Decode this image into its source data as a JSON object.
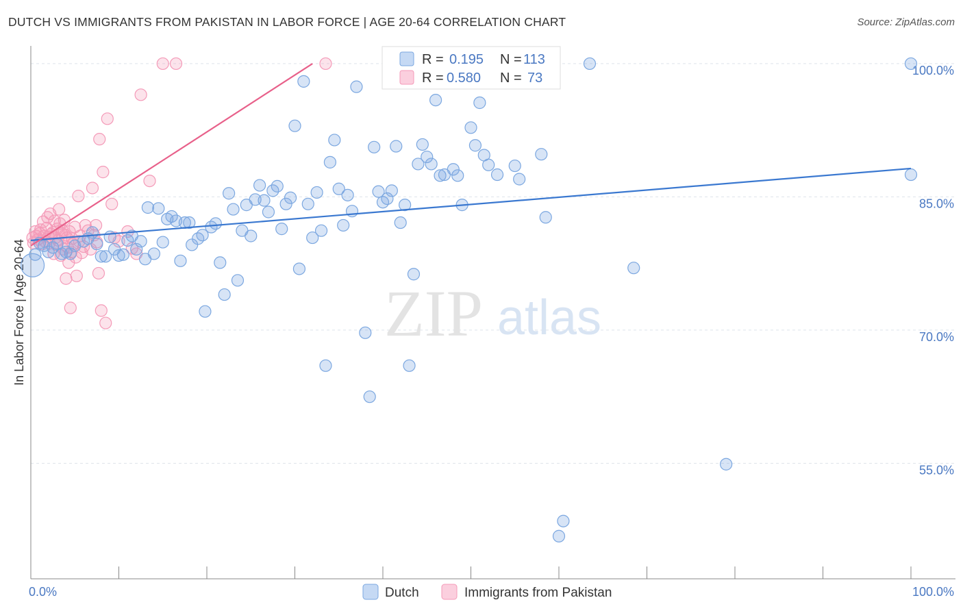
{
  "title": "DUTCH VS IMMIGRANTS FROM PAKISTAN IN LABOR FORCE | AGE 20-64 CORRELATION CHART",
  "source": "Source: ZipAtlas.com",
  "watermark": {
    "zip": "ZIP",
    "atlas": "atlas"
  },
  "colors": {
    "dutch": "#7ba7e0",
    "dutch_line": "#3a78d0",
    "pakistan": "#f49ab8",
    "pakistan_line": "#e8608a",
    "grid": "#dde3ea",
    "tick_text": "#4a78c2"
  },
  "legend": {
    "r_label": "R =",
    "n_label": "N =",
    "rows": [
      {
        "series": "Dutch",
        "r": "0.195",
        "n": "113"
      },
      {
        "series": "Immigrants from Pakistan",
        "r": "0.580",
        "n": "73"
      }
    ]
  },
  "chart_data": {
    "type": "scatter",
    "title": "DUTCH VS IMMIGRANTS FROM PAKISTAN IN LABOR FORCE | AGE 20-64 CORRELATION CHART",
    "xlabel": "",
    "ylabel": "In Labor Force | Age 20-64",
    "xlim": [
      0,
      100
    ],
    "ylim": [
      42,
      102
    ],
    "x_tick_labels": [
      "0.0%",
      "100.0%"
    ],
    "y_ticks": [
      {
        "value": 55,
        "label": "55.0%"
      },
      {
        "value": 70,
        "label": "70.0%"
      },
      {
        "value": 85,
        "label": "85.0%"
      },
      {
        "value": 100,
        "label": "100.0%"
      }
    ],
    "grid": true,
    "legend_position": "top-center",
    "series": [
      {
        "name": "Dutch",
        "trend": {
          "x": [
            0,
            100
          ],
          "y": [
            80.1,
            88.2
          ]
        },
        "points": [
          [
            0.2,
            77.3
          ],
          [
            0.5,
            78.5
          ],
          [
            1,
            79.8
          ],
          [
            1.5,
            79.5
          ],
          [
            2,
            78.8
          ],
          [
            2.5,
            79.3
          ],
          [
            3,
            79.7
          ],
          [
            3.5,
            78.6
          ],
          [
            4,
            78.8
          ],
          [
            4.5,
            78.6
          ],
          [
            5,
            79.5
          ],
          [
            6,
            80.0
          ],
          [
            6.5,
            80.3
          ],
          [
            7,
            81.0
          ],
          [
            7.5,
            79.7
          ],
          [
            8,
            78.3
          ],
          [
            8.5,
            78.3
          ],
          [
            9,
            80.5
          ],
          [
            9.5,
            79.1
          ],
          [
            10,
            78.4
          ],
          [
            10.5,
            78.5
          ],
          [
            11,
            80.1
          ],
          [
            11.5,
            80.6
          ],
          [
            12,
            79.1
          ],
          [
            12.5,
            80.0
          ],
          [
            13,
            78.0
          ],
          [
            13.3,
            83.8
          ],
          [
            14,
            78.6
          ],
          [
            14.5,
            83.7
          ],
          [
            15,
            79.9
          ],
          [
            15.5,
            82.5
          ],
          [
            16,
            82.8
          ],
          [
            16.5,
            82.3
          ],
          [
            17,
            77.8
          ],
          [
            17.5,
            82.1
          ],
          [
            18,
            82.1
          ],
          [
            18.3,
            79.6
          ],
          [
            19,
            80.3
          ],
          [
            19.5,
            80.7
          ],
          [
            19.8,
            72.1
          ],
          [
            20.5,
            81.6
          ],
          [
            21,
            82.0
          ],
          [
            21.5,
            77.6
          ],
          [
            22,
            74.0
          ],
          [
            22.5,
            85.4
          ],
          [
            23,
            83.6
          ],
          [
            23.5,
            75.6
          ],
          [
            24,
            81.2
          ],
          [
            24.5,
            84.1
          ],
          [
            25,
            80.6
          ],
          [
            25.5,
            84.7
          ],
          [
            26,
            86.3
          ],
          [
            26.5,
            84.6
          ],
          [
            27,
            83.3
          ],
          [
            27.5,
            85.7
          ],
          [
            28,
            86.2
          ],
          [
            28.5,
            81.4
          ],
          [
            29,
            84.2
          ],
          [
            29.5,
            84.9
          ],
          [
            30,
            93.0
          ],
          [
            30.5,
            76.9
          ],
          [
            31,
            98.0
          ],
          [
            31.5,
            84.2
          ],
          [
            32,
            80.4
          ],
          [
            32.5,
            85.5
          ],
          [
            33,
            81.2
          ],
          [
            33.5,
            66.0
          ],
          [
            34,
            88.9
          ],
          [
            34.5,
            91.4
          ],
          [
            35,
            85.9
          ],
          [
            35.5,
            81.8
          ],
          [
            36,
            85.2
          ],
          [
            36.5,
            83.4
          ],
          [
            37,
            97.4
          ],
          [
            38,
            69.7
          ],
          [
            38.5,
            62.5
          ],
          [
            39,
            90.6
          ],
          [
            39.5,
            85.6
          ],
          [
            40,
            84.4
          ],
          [
            40.5,
            84.8
          ],
          [
            41,
            85.7
          ],
          [
            41.5,
            90.7
          ],
          [
            42,
            82.1
          ],
          [
            42.5,
            84.1
          ],
          [
            43,
            66.0
          ],
          [
            43.5,
            76.3
          ],
          [
            44,
            88.7
          ],
          [
            44.5,
            90.9
          ],
          [
            45,
            89.5
          ],
          [
            45.5,
            88.7
          ],
          [
            46,
            95.9
          ],
          [
            46.5,
            87.4
          ],
          [
            47,
            87.5
          ],
          [
            48,
            88.1
          ],
          [
            48.5,
            87.4
          ],
          [
            49,
            84.1
          ],
          [
            50,
            92.8
          ],
          [
            50.5,
            90.8
          ],
          [
            51,
            95.6
          ],
          [
            51.5,
            89.7
          ],
          [
            52,
            88.6
          ],
          [
            53,
            87.5
          ],
          [
            55,
            88.5
          ],
          [
            55.5,
            87.0
          ],
          [
            58,
            89.8
          ],
          [
            58.5,
            82.7
          ],
          [
            60,
            46.8
          ],
          [
            60.5,
            48.5
          ],
          [
            63.5,
            100.0
          ],
          [
            68.5,
            77.0
          ],
          [
            79,
            54.9
          ],
          [
            100,
            100.0
          ],
          [
            100,
            87.5
          ]
        ]
      },
      {
        "name": "Immigrants from Pakistan",
        "trend": {
          "x": [
            0,
            32
          ],
          "y": [
            79.5,
            100.0
          ]
        },
        "points": [
          [
            0.2,
            80.4
          ],
          [
            0.3,
            79.8
          ],
          [
            0.5,
            81.1
          ],
          [
            0.6,
            80.6
          ],
          [
            0.8,
            80.2
          ],
          [
            1,
            80.9
          ],
          [
            1.1,
            81.3
          ],
          [
            1.3,
            79.7
          ],
          [
            1.4,
            82.2
          ],
          [
            1.5,
            80.6
          ],
          [
            1.6,
            80.0
          ],
          [
            1.8,
            81.5
          ],
          [
            1.9,
            82.7
          ],
          [
            2,
            80.5
          ],
          [
            2.1,
            79.8
          ],
          [
            2.2,
            83.1
          ],
          [
            2.3,
            80.8
          ],
          [
            2.5,
            81.0
          ],
          [
            2.6,
            78.6
          ],
          [
            2.7,
            82.3
          ],
          [
            2.8,
            80.4
          ],
          [
            2.9,
            79.6
          ],
          [
            3,
            81.4
          ],
          [
            3.1,
            80.1
          ],
          [
            3.2,
            83.6
          ],
          [
            3.3,
            82.0
          ],
          [
            3.4,
            78.4
          ],
          [
            3.5,
            80.9
          ],
          [
            3.6,
            81.2
          ],
          [
            3.7,
            79.1
          ],
          [
            3.8,
            82.4
          ],
          [
            3.9,
            80.7
          ],
          [
            4,
            75.8
          ],
          [
            4.1,
            80.4
          ],
          [
            4.2,
            79.3
          ],
          [
            4.3,
            77.6
          ],
          [
            4.4,
            81.1
          ],
          [
            4.5,
            72.5
          ],
          [
            4.6,
            78.8
          ],
          [
            4.7,
            80.3
          ],
          [
            4.8,
            79.7
          ],
          [
            5,
            81.6
          ],
          [
            5.1,
            78.2
          ],
          [
            5.2,
            76.1
          ],
          [
            5.4,
            85.1
          ],
          [
            5.5,
            80.0
          ],
          [
            5.6,
            80.6
          ],
          [
            5.8,
            78.7
          ],
          [
            6,
            79.4
          ],
          [
            6.2,
            81.8
          ],
          [
            6.5,
            81.2
          ],
          [
            6.8,
            79.1
          ],
          [
            7,
            86.0
          ],
          [
            7.2,
            80.7
          ],
          [
            7.4,
            81.8
          ],
          [
            7.5,
            79.9
          ],
          [
            7.7,
            76.4
          ],
          [
            7.8,
            91.5
          ],
          [
            8,
            72.2
          ],
          [
            8.2,
            87.8
          ],
          [
            8.5,
            70.8
          ],
          [
            8.7,
            93.8
          ],
          [
            9.2,
            84.2
          ],
          [
            9.5,
            80.4
          ],
          [
            10,
            80.0
          ],
          [
            11,
            81.1
          ],
          [
            11.5,
            79.2
          ],
          [
            12,
            78.6
          ],
          [
            12.5,
            96.5
          ],
          [
            13.5,
            86.8
          ],
          [
            15,
            100.0
          ],
          [
            16.5,
            100.0
          ],
          [
            33.5,
            100.0
          ]
        ]
      }
    ]
  }
}
